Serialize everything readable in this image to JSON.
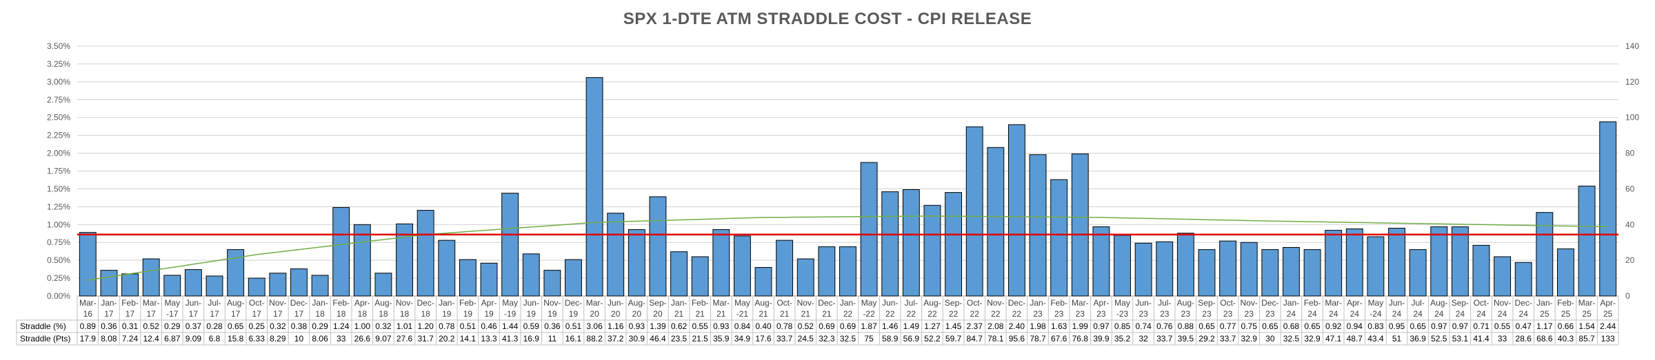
{
  "chart_data": {
    "type": "bar",
    "title": "SPX 1-DTE ATM STRADDLE COST - CPI RELEASE",
    "categories": [
      "Mar-16",
      "Jan-17",
      "Feb-17",
      "Mar-17",
      "May-17",
      "Jun-17",
      "Jul-17",
      "Aug-17",
      "Oct-17",
      "Nov-17",
      "Dec-17",
      "Jan-18",
      "Feb-18",
      "Apr-18",
      "Aug-18",
      "Nov-18",
      "Dec-18",
      "Jan-19",
      "Feb-19",
      "Apr-19",
      "May-19",
      "Jun-19",
      "Nov-19",
      "Dec-19",
      "Mar-20",
      "Jun-20",
      "Aug-20",
      "Sep-20",
      "Jan-21",
      "Feb-21",
      "Mar-21",
      "May-21",
      "Aug-21",
      "Oct-21",
      "Nov-21",
      "Dec-21",
      "Jan-22",
      "May-22",
      "Jun-22",
      "Jul-22",
      "Aug-22",
      "Sep-22",
      "Oct-22",
      "Nov-22",
      "Dec-22",
      "Jan-23",
      "Feb-23",
      "Mar-23",
      "Apr-23",
      "May-23",
      "Jun-23",
      "Jul-23",
      "Aug-23",
      "Sep-23",
      "Oct-23",
      "Nov-23",
      "Dec-23",
      "Jan-24",
      "Feb-24",
      "Mar-24",
      "Apr-24",
      "May-24",
      "Jun-24",
      "Jul-24",
      "Aug-24",
      "Sep-24",
      "Oct-24",
      "Nov-24",
      "Dec-24",
      "Jan-25",
      "Feb-25",
      "Mar-25",
      "Apr-25"
    ],
    "category_lines": [
      [
        "Mar-",
        "16"
      ],
      [
        "Jan-",
        "17"
      ],
      [
        "Feb-",
        "17"
      ],
      [
        "Mar-",
        "17"
      ],
      [
        "May",
        "-17"
      ],
      [
        "Jun-",
        "17"
      ],
      [
        "Jul-",
        "17"
      ],
      [
        "Aug-",
        "17"
      ],
      [
        "Oct-",
        "17"
      ],
      [
        "Nov-",
        "17"
      ],
      [
        "Dec-",
        "17"
      ],
      [
        "Jan-",
        "18"
      ],
      [
        "Feb-",
        "18"
      ],
      [
        "Apr-",
        "18"
      ],
      [
        "Aug-",
        "18"
      ],
      [
        "Nov-",
        "18"
      ],
      [
        "Dec-",
        "18"
      ],
      [
        "Jan-",
        "19"
      ],
      [
        "Feb-",
        "19"
      ],
      [
        "Apr-",
        "19"
      ],
      [
        "May",
        "-19"
      ],
      [
        "Jun-",
        "19"
      ],
      [
        "Nov-",
        "19"
      ],
      [
        "Dec-",
        "19"
      ],
      [
        "Mar-",
        "20"
      ],
      [
        "Jun-",
        "20"
      ],
      [
        "Aug-",
        "20"
      ],
      [
        "Sep-",
        "20"
      ],
      [
        "Jan-",
        "21"
      ],
      [
        "Feb-",
        "21"
      ],
      [
        "Mar-",
        "21"
      ],
      [
        "May",
        "-21"
      ],
      [
        "Aug-",
        "21"
      ],
      [
        "Oct-",
        "21"
      ],
      [
        "Nov-",
        "21"
      ],
      [
        "Dec-",
        "21"
      ],
      [
        "Jan-",
        "22"
      ],
      [
        "May",
        "-22"
      ],
      [
        "Jun-",
        "22"
      ],
      [
        "Jul-",
        "22"
      ],
      [
        "Aug-",
        "22"
      ],
      [
        "Sep-",
        "22"
      ],
      [
        "Oct-",
        "22"
      ],
      [
        "Nov-",
        "22"
      ],
      [
        "Dec-",
        "22"
      ],
      [
        "Jan-",
        "23"
      ],
      [
        "Feb-",
        "23"
      ],
      [
        "Mar-",
        "23"
      ],
      [
        "Apr-",
        "23"
      ],
      [
        "May",
        "-23"
      ],
      [
        "Jun-",
        "23"
      ],
      [
        "Jul-",
        "23"
      ],
      [
        "Aug-",
        "23"
      ],
      [
        "Sep-",
        "23"
      ],
      [
        "Oct-",
        "23"
      ],
      [
        "Nov-",
        "23"
      ],
      [
        "Dec-",
        "23"
      ],
      [
        "Jan-",
        "24"
      ],
      [
        "Feb-",
        "24"
      ],
      [
        "Mar-",
        "24"
      ],
      [
        "Apr-",
        "24"
      ],
      [
        "May",
        "-24"
      ],
      [
        "Jun-",
        "24"
      ],
      [
        "Jul-",
        "24"
      ],
      [
        "Aug-",
        "24"
      ],
      [
        "Sep-",
        "24"
      ],
      [
        "Oct-",
        "24"
      ],
      [
        "Nov-",
        "24"
      ],
      [
        "Dec-",
        "24"
      ],
      [
        "Jan-",
        "25"
      ],
      [
        "Feb-",
        "25"
      ],
      [
        "Mar-",
        "25"
      ],
      [
        "Apr-",
        "25"
      ]
    ],
    "series": [
      {
        "name": "Straddle (%)",
        "values": [
          0.89,
          0.36,
          0.31,
          0.52,
          0.29,
          0.37,
          0.28,
          0.65,
          0.25,
          0.32,
          0.38,
          0.29,
          1.24,
          1.0,
          0.32,
          1.01,
          1.2,
          0.78,
          0.51,
          0.46,
          1.44,
          0.59,
          0.36,
          0.51,
          3.06,
          1.16,
          0.93,
          1.39,
          0.62,
          0.55,
          0.93,
          0.84,
          0.4,
          0.78,
          0.52,
          0.69,
          0.69,
          1.87,
          1.46,
          1.49,
          1.27,
          1.45,
          2.37,
          2.08,
          2.4,
          1.98,
          1.63,
          1.99,
          0.97,
          0.85,
          0.74,
          0.76,
          0.88,
          0.65,
          0.77,
          0.75,
          0.65,
          0.68,
          0.65,
          0.92,
          0.94,
          0.83,
          0.95,
          0.65,
          0.97,
          0.97,
          0.71,
          0.55,
          0.47,
          1.17,
          0.66,
          1.54,
          2.44
        ]
      },
      {
        "name": "Straddle (Pts)",
        "values": [
          "17.9",
          "8.08",
          "7.24",
          "12.4",
          "6.87",
          "9.09",
          "6.8",
          "15.8",
          "6.33",
          "8.29",
          "10",
          "8.06",
          "33",
          "26.6",
          "9.07",
          "27.6",
          "31.7",
          "20.2",
          "14.1",
          "13.3",
          "41.3",
          "16.9",
          "11",
          "16.1",
          "88.2",
          "37.2",
          "30.9",
          "46.4",
          "23.5",
          "21.5",
          "35.9",
          "34.9",
          "17.6",
          "33.7",
          "24.5",
          "32.3",
          "32.5",
          "75",
          "58.9",
          "56.9",
          "52.2",
          "59.7",
          "84.7",
          "78.1",
          "95.6",
          "78.7",
          "67.6",
          "76.8",
          "39.9",
          "35.2",
          "32",
          "33.7",
          "39.5",
          "29.2",
          "33.7",
          "32.9",
          "30",
          "32.5",
          "32.9",
          "47.1",
          "48.7",
          "43.4",
          "51",
          "36.9",
          "52.5",
          "53.1",
          "41.4",
          "33",
          "28.6",
          "68.6",
          "40.3",
          "85.7",
          "133"
        ]
      }
    ],
    "display_pct": [
      "0.89",
      "0.36",
      "0.31",
      "0.52",
      "0.29",
      "0.37",
      "0.28",
      "0.65",
      "0.25",
      "0.32",
      "0.38",
      "0.29",
      "1.24",
      "1.00",
      "0.32",
      "1.01",
      "1.20",
      "0.78",
      "0.51",
      "0.46",
      "1.44",
      "0.59",
      "0.36",
      "0.51",
      "3.06",
      "1.16",
      "0.93",
      "1.39",
      "0.62",
      "0.55",
      "0.93",
      "0.84",
      "0.40",
      "0.78",
      "0.52",
      "0.69",
      "0.69",
      "1.87",
      "1.46",
      "1.49",
      "1.27",
      "1.45",
      "2.37",
      "2.08",
      "2.40",
      "1.98",
      "1.63",
      "1.99",
      "0.97",
      "0.85",
      "0.74",
      "0.76",
      "0.88",
      "0.65",
      "0.77",
      "0.75",
      "0.65",
      "0.68",
      "0.65",
      "0.92",
      "0.94",
      "0.83",
      "0.95",
      "0.65",
      "0.97",
      "0.97",
      "0.71",
      "0.55",
      "0.47",
      "1.17",
      "0.66",
      "1.54",
      "2.44"
    ],
    "y_left": {
      "min": 0,
      "max": 3.5,
      "ticks": [
        "0.00%",
        "0.25%",
        "0.50%",
        "0.75%",
        "1.00%",
        "1.25%",
        "1.50%",
        "1.75%",
        "2.00%",
        "2.25%",
        "2.50%",
        "2.75%",
        "3.00%",
        "3.25%",
        "3.50%"
      ]
    },
    "y_right": {
      "min": 0,
      "max": 140,
      "ticks": [
        "0",
        "20",
        "40",
        "60",
        "80",
        "100",
        "120",
        "140"
      ]
    },
    "average_line": 0.86,
    "trend_line": {
      "type": "polynomial",
      "points": [
        [
          0,
          0.22
        ],
        [
          8,
          0.58
        ],
        [
          16,
          0.86
        ],
        [
          24,
          1.03
        ],
        [
          32,
          1.1
        ],
        [
          40,
          1.12
        ],
        [
          48,
          1.1
        ],
        [
          56,
          1.05
        ],
        [
          64,
          1.01
        ],
        [
          72,
          0.97
        ]
      ]
    },
    "grid": true,
    "colors": {
      "bar": "#5B9BD5",
      "bar_edge": "#000000",
      "average": "#E00000",
      "trend": "#70AD47",
      "grid": "#D0D0D0",
      "text": "#595959"
    }
  }
}
